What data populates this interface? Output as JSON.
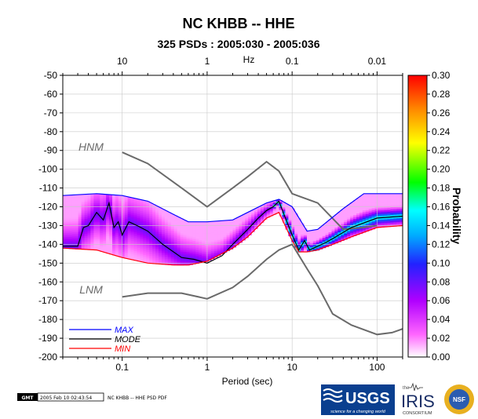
{
  "chart_data": {
    "type": "heatmap",
    "title": "NC KHBB -- HHE",
    "subtitle": "325 PSDs : 2005:030 - 2005:036",
    "xlabel": "Period (sec)",
    "top_xlabel": "Hz",
    "colorbar_label": "Probability",
    "log_x": true,
    "xlim": [
      0.02,
      200
    ],
    "ylim": [
      -200,
      -50
    ],
    "x_ticks": [
      0.1,
      1,
      10,
      100
    ],
    "x_tick_labels": [
      "0.1",
      "1",
      "10",
      "100"
    ],
    "top_ticks": [
      0.1,
      1,
      10,
      100
    ],
    "top_tick_labels": [
      "10",
      "1",
      "0.1",
      "0.01"
    ],
    "y_ticks": [
      -50,
      -60,
      -70,
      -80,
      -90,
      -100,
      -110,
      -120,
      -130,
      -140,
      -150,
      -160,
      -170,
      -180,
      -190,
      -200
    ],
    "colorbar_range": [
      0,
      0.3
    ],
    "colorbar_ticks": [
      0.0,
      0.02,
      0.04,
      0.06,
      0.08,
      0.1,
      0.12,
      0.14,
      0.16,
      0.18,
      0.2,
      0.22,
      0.24,
      0.26,
      0.28,
      0.3
    ],
    "colorbar_tick_labels": [
      "0.00",
      "0.02",
      "0.04",
      "0.06",
      "0.08",
      "0.10",
      "0.12",
      "0.14",
      "0.16",
      "0.18",
      "0.20",
      "0.22",
      "0.24",
      "0.26",
      "0.28",
      "0.30"
    ],
    "annotations": {
      "hnm": "HNM",
      "lnm": "LNM"
    },
    "legend": [
      "MAX",
      "MODE",
      "MIN"
    ],
    "legend_position": "bottom-left",
    "noise_models": {
      "HNM": {
        "x": [
          0.1,
          0.2,
          0.5,
          1,
          2,
          3,
          5,
          7,
          10,
          20,
          40,
          70,
          100
        ],
        "y": [
          -91,
          -97,
          -110,
          -120,
          -110,
          -104,
          -96,
          -101,
          -113,
          -118,
          -132,
          -131,
          -130
        ]
      },
      "LNM": {
        "x": [
          0.1,
          0.2,
          0.5,
          1,
          2,
          3,
          5,
          7,
          10,
          15,
          20,
          30,
          50,
          100,
          150,
          200
        ],
        "y": [
          -168,
          -166,
          -166,
          -169,
          -163,
          -157,
          -148,
          -143,
          -140,
          -153,
          -162,
          -177,
          -183,
          -188,
          -187,
          -185
        ]
      }
    },
    "series": [
      {
        "name": "MAX",
        "color": "#0000ff",
        "x": [
          0.02,
          0.05,
          0.1,
          0.2,
          0.4,
          0.6,
          1,
          2,
          3,
          5,
          7,
          10,
          15,
          20,
          40,
          70,
          100,
          200
        ],
        "y": [
          -114,
          -113,
          -114,
          -117,
          -124,
          -128,
          -128,
          -127,
          -123,
          -118,
          -116,
          -120,
          -133,
          -132,
          -121,
          -113,
          -113,
          -113
        ]
      },
      {
        "name": "MODE",
        "color": "#000000",
        "x": [
          0.02,
          0.03,
          0.035,
          0.04,
          0.05,
          0.06,
          0.07,
          0.08,
          0.09,
          0.1,
          0.12,
          0.15,
          0.2,
          0.3,
          0.5,
          0.7,
          1,
          1.5,
          2,
          3,
          4,
          5,
          6,
          7,
          8,
          10,
          12,
          14,
          16,
          20,
          25,
          30,
          50,
          100,
          200
        ],
        "y": [
          -141,
          -141,
          -131,
          -130,
          -123,
          -127,
          -118,
          -131,
          -128,
          -135,
          -128,
          -130,
          -133,
          -140,
          -147,
          -148,
          -150,
          -146,
          -140,
          -132,
          -126,
          -122,
          -120,
          -117,
          -124,
          -135,
          -143,
          -138,
          -143,
          -141,
          -139,
          -137,
          -131,
          -126,
          -125
        ]
      },
      {
        "name": "MIN",
        "color": "#ff0000",
        "x": [
          0.02,
          0.05,
          0.1,
          0.2,
          0.4,
          0.6,
          1,
          2,
          3,
          5,
          7,
          10,
          12,
          15,
          20,
          30,
          50,
          100,
          200
        ],
        "y": [
          -142,
          -143,
          -147,
          -150,
          -151,
          -151,
          -149,
          -142,
          -136,
          -126,
          -123,
          -138,
          -144,
          -144,
          -143,
          -140,
          -136,
          -131,
          -130
        ]
      }
    ]
  },
  "footer": {
    "gmt_badge": "GMT",
    "timestamp": "2005 Feb 10 02:43:54",
    "caption": "NC KHBB -- HHE PSD PDF"
  },
  "logos": {
    "usgs": "USGS",
    "usgs_tagline": "science for a changing world",
    "iris_the": "the",
    "iris": "IRIS",
    "iris_sub": "CONSORTIUM",
    "nsf": "NSF"
  }
}
